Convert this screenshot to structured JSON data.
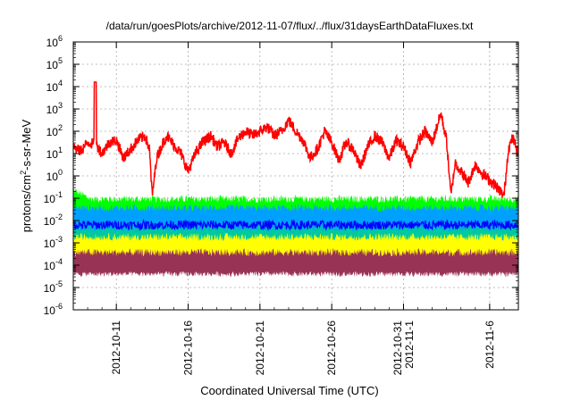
{
  "chart_data": {
    "type": "line",
    "title": "/data/run/goesPlots/archive/2012-11-07/flux/../flux/31daysEarthDataFluxes.txt",
    "xlabel": "Coordinated Universal Time (UTC)",
    "ylabel_parts": [
      "protons/cm",
      "2",
      "-s-sr-MeV"
    ],
    "y_scale": "log",
    "ylim_exponents": [
      -6,
      6
    ],
    "y_ticks": [
      {
        "base": "10",
        "exp": "-6"
      },
      {
        "base": "10",
        "exp": "-5"
      },
      {
        "base": "10",
        "exp": "-4"
      },
      {
        "base": "10",
        "exp": "-3"
      },
      {
        "base": "10",
        "exp": "-2"
      },
      {
        "base": "10",
        "exp": "-1"
      },
      {
        "base": "10",
        "exp": "0"
      },
      {
        "base": "10",
        "exp": "1"
      },
      {
        "base": "10",
        "exp": "2"
      },
      {
        "base": "10",
        "exp": "3"
      },
      {
        "base": "10",
        "exp": "4"
      },
      {
        "base": "10",
        "exp": "5"
      },
      {
        "base": "10",
        "exp": "6"
      }
    ],
    "x_range_days": [
      "2012-10-08",
      "2012-11-08"
    ],
    "x_ticks": [
      {
        "date": "2012-10-11",
        "lines": [
          "2012-10-11"
        ]
      },
      {
        "date": "2012-10-16",
        "lines": [
          "2012-10-16"
        ]
      },
      {
        "date": "2012-10-21",
        "lines": [
          "2012-10-21"
        ]
      },
      {
        "date": "2012-10-26",
        "lines": [
          "2012-10-26"
        ]
      },
      {
        "date": "2012-10-31",
        "lines": [
          "2012-10-31",
          "2012-11-1"
        ]
      },
      {
        "date": "2012-11-06",
        "lines": [
          "2012-11-6"
        ]
      }
    ],
    "grid": true,
    "series": [
      {
        "color": "#ff0000",
        "kind": "line",
        "anchors": [
          [
            0,
            1.3
          ],
          [
            0.5,
            1.1
          ],
          [
            1.0,
            1.5
          ],
          [
            1.6,
            1.4
          ],
          [
            2.0,
            1.0
          ],
          [
            2.5,
            1.5
          ],
          [
            3.0,
            1.6
          ],
          [
            3.5,
            0.8
          ],
          [
            4.0,
            1.2
          ],
          [
            4.5,
            1.6
          ],
          [
            5.0,
            1.8
          ],
          [
            5.3,
            1.2
          ],
          [
            5.5,
            -0.9
          ],
          [
            5.8,
            0.8
          ],
          [
            6.2,
            1.4
          ],
          [
            6.5,
            1.8
          ],
          [
            7.0,
            1.4
          ],
          [
            7.5,
            1.0
          ],
          [
            8.0,
            0.2
          ],
          [
            8.5,
            1.0
          ],
          [
            9.0,
            1.5
          ],
          [
            9.6,
            1.8
          ],
          [
            10.0,
            1.3
          ],
          [
            10.5,
            1.5
          ],
          [
            11.0,
            1.0
          ],
          [
            11.5,
            1.7
          ],
          [
            12.0,
            2.0
          ],
          [
            12.5,
            1.8
          ],
          [
            13.0,
            2.0
          ],
          [
            13.5,
            2.2
          ],
          [
            14.0,
            1.8
          ],
          [
            14.5,
            2.0
          ],
          [
            15.0,
            2.5
          ],
          [
            15.5,
            2.0
          ],
          [
            16.0,
            1.6
          ],
          [
            16.5,
            0.8
          ],
          [
            17.0,
            1.2
          ],
          [
            17.5,
            2.0
          ],
          [
            18.0,
            1.5
          ],
          [
            18.5,
            0.7
          ],
          [
            19.0,
            1.5
          ],
          [
            19.5,
            1.2
          ],
          [
            20.0,
            0.4
          ],
          [
            20.5,
            1.3
          ],
          [
            21.0,
            1.8
          ],
          [
            21.5,
            1.5
          ],
          [
            22.0,
            0.8
          ],
          [
            22.5,
            1.6
          ],
          [
            23.0,
            1.3
          ],
          [
            23.5,
            0.6
          ],
          [
            24.0,
            1.5
          ],
          [
            24.5,
            2.0
          ],
          [
            25.0,
            1.5
          ],
          [
            25.6,
            2.8
          ],
          [
            26.0,
            1.6
          ],
          [
            26.3,
            -0.9
          ],
          [
            26.6,
            0.6
          ],
          [
            27.0,
            0.2
          ],
          [
            27.5,
            -0.3
          ],
          [
            28.0,
            0.5
          ],
          [
            28.5,
            0.1
          ],
          [
            29.0,
            -0.2
          ],
          [
            29.5,
            -0.5
          ],
          [
            30.0,
            -0.9
          ],
          [
            30.3,
            1.2
          ],
          [
            30.6,
            1.7
          ],
          [
            31.0,
            1.0
          ]
        ]
      },
      {
        "color": "#00ff00",
        "kind": "band",
        "low": -2.0,
        "high": -1.1,
        "early_high": -0.7
      },
      {
        "color": "#00a0ff",
        "kind": "band",
        "low": -2.6,
        "high": -1.5
      },
      {
        "color": "#00c8a0",
        "kind": "band",
        "low": -3.0,
        "high": -2.4
      },
      {
        "color": "#0000ff",
        "kind": "line_noise",
        "center": -2.2,
        "amp": 0.2
      },
      {
        "color": "#ffff00",
        "kind": "band",
        "low": -3.6,
        "high": -2.8
      },
      {
        "color": "#993355",
        "kind": "band",
        "low": -4.35,
        "high": -3.5
      }
    ]
  }
}
